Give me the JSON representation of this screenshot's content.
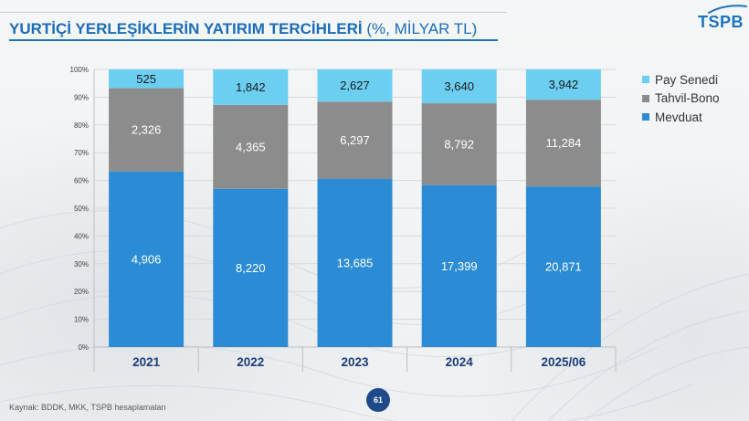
{
  "slide": {
    "logo_text": "TSPB",
    "source": "Kaynak: BDDK, MKK, TSPB hesaplamaları",
    "page_number": "61"
  },
  "colors": {
    "title": "#1b6db8",
    "title_rule": "#1e73be",
    "category_label": "#1a3e78",
    "page_badge": "#1f4a8a",
    "logo": "#1e73be"
  },
  "chart_data": {
    "type": "bar",
    "stacked": "percent",
    "title": "YURTİÇİ YERLEŞİKLERİN YATIRIM TERCİHLERİ",
    "subtitle": "(%, MİLYAR TL)",
    "categories": [
      "2021",
      "2022",
      "2023",
      "2024",
      "2025/06"
    ],
    "series": [
      {
        "name": "Mevduat",
        "color": "#2b8cd5",
        "label_color": "#ffffff",
        "values": [
          4906,
          8220,
          13685,
          17399,
          20871
        ],
        "labels": [
          "4,906",
          "8,220",
          "13,685",
          "17,399",
          "20,871"
        ]
      },
      {
        "name": "Tahvil-Bono",
        "color": "#8c8c8c",
        "label_color": "#ffffff",
        "values": [
          2326,
          4365,
          6297,
          8792,
          11284
        ],
        "labels": [
          "2,326",
          "4,365",
          "6,297",
          "8,792",
          "11,284"
        ]
      },
      {
        "name": "Pay Senedi",
        "color": "#6ccef0",
        "label_color": "#1a1a1a",
        "values": [
          525,
          1842,
          2627,
          3640,
          3942
        ],
        "labels": [
          "525",
          "1,842",
          "2,627",
          "3,640",
          "3,942"
        ]
      }
    ],
    "ylim": [
      0,
      100
    ],
    "y_tick_labels": [
      "0%",
      "10%",
      "20%",
      "30%",
      "40%",
      "50%",
      "60%",
      "70%",
      "80%",
      "90%",
      "100%"
    ],
    "grid": true,
    "legend": "right"
  }
}
